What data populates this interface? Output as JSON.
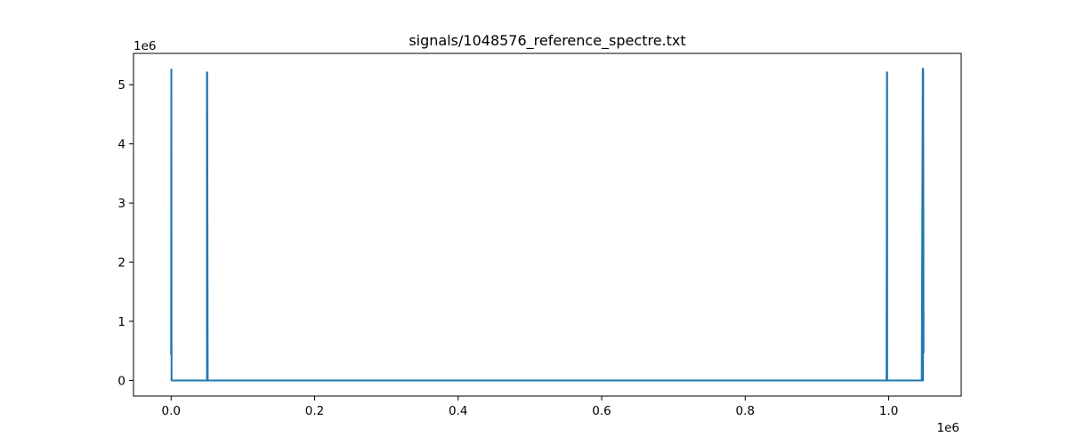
{
  "chart_data": {
    "type": "line",
    "title": "signals/1048576_reference_spectre.txt",
    "xlabel": "",
    "ylabel": "",
    "x_offset_label": "1e6",
    "y_offset_label": "1e6",
    "xlim": [
      -0.0524288,
      1.1010048
    ],
    "ylim": [
      -0.264,
      5.53
    ],
    "x_ticks": [
      0.0,
      0.2,
      0.4,
      0.6,
      0.8,
      1.0
    ],
    "x_tick_labels": [
      "0.0",
      "0.2",
      "0.4",
      "0.6",
      "0.8",
      "1.0"
    ],
    "y_ticks": [
      0,
      1,
      2,
      3,
      4,
      5
    ],
    "y_tick_labels": [
      "0",
      "1",
      "2",
      "3",
      "4",
      "5"
    ],
    "grid": false,
    "series": [
      {
        "color": "#1f77b4",
        "x": [
          0.0,
          0.0003,
          0.0006,
          0.001,
          0.002,
          0.05,
          0.0499,
          0.05,
          0.0501,
          0.0502,
          0.0503,
          0.051,
          0.997,
          0.9975,
          0.9977,
          0.9978,
          0.9979,
          0.998,
          0.999,
          1.046,
          1.0475,
          1.0478,
          1.048,
          1.04858
        ],
        "y": [
          0.43,
          5.26,
          0.0,
          0.0,
          0.0,
          0.0,
          5.21,
          0.0,
          5.21,
          0.0,
          5.21,
          0.0,
          0.0,
          5.21,
          0.0,
          5.21,
          0.0,
          0.0,
          0.0,
          0.0,
          5.27,
          0.0,
          5.27,
          0.46
        ]
      }
    ]
  }
}
